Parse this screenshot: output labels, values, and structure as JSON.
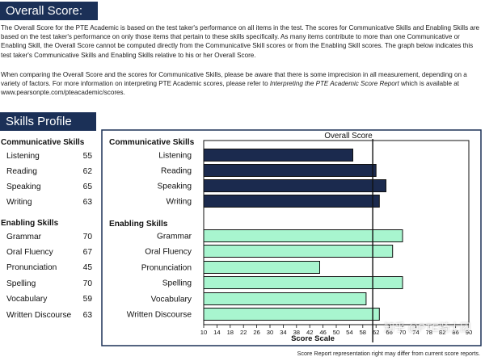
{
  "overall": {
    "header": "Overall Score: 61",
    "score": 61,
    "paragraph1": "The Overall Score for the PTE Academic is based on the test taker's performance on all items in the test.  The scores for Communicative Skills and Enabling Skills are based on the test taker's performance on only those items that pertain to these skills specifically.  As many items contribute to more than one Communicative or Enabling Skill, the Overall Score cannot be computed directly from the Communicative Skill scores or from the Enabling Skill scores.  The graph below indicates this test taker's Communicative Skills and Enabling Skills relative to his or her Overall Score.",
    "paragraph2_pre": "When comparing the Overall Score and the scores for Communicative Skills, please be aware that there is some imprecision in all measurement, depending on a variety of factors.  For more information on interpreting PTE Academic scores, please refer to ",
    "paragraph2_italic": "Interpreting the PTE Academic Score Report",
    "paragraph2_post": " which is available at www.pearsonpte.com/pteacademic/scores."
  },
  "skills_profile": {
    "header": "Skills Profile",
    "communicative_heading": "Communicative Skills",
    "enabling_heading": "Enabling Skills",
    "communicative": [
      {
        "name": "Listening",
        "score": "55"
      },
      {
        "name": "Reading",
        "score": "62"
      },
      {
        "name": "Speaking",
        "score": "65"
      },
      {
        "name": "Writing",
        "score": "63"
      }
    ],
    "enabling": [
      {
        "name": "Grammar",
        "score": "70"
      },
      {
        "name": "Oral Fluency",
        "score": "67"
      },
      {
        "name": "Pronunciation",
        "score": "45"
      },
      {
        "name": "Spelling",
        "score": "70"
      },
      {
        "name": "Vocabulary",
        "score": "59"
      },
      {
        "name": "Written Discourse",
        "score": "63"
      }
    ]
  },
  "chart_data": {
    "type": "bar",
    "orientation": "horizontal",
    "groups": [
      {
        "heading": "Communicative Skills",
        "categories": [
          "Listening",
          "Reading",
          "Speaking",
          "Writing"
        ],
        "values": [
          55,
          62,
          65,
          63
        ],
        "color": "#1b2a4e"
      },
      {
        "heading": "Enabling Skills",
        "categories": [
          "Grammar",
          "Oral Fluency",
          "Pronunciation",
          "Spelling",
          "Vocabulary",
          "Written Discourse"
        ],
        "values": [
          70,
          67,
          45,
          70,
          59,
          63
        ],
        "color": "#a8f5cf"
      }
    ],
    "reference_line": {
      "label": "Overall Score",
      "value": 61
    },
    "xlabel": "Score Scale",
    "xlim": [
      10,
      90
    ],
    "xticks": [
      "10",
      "14",
      "18",
      "22",
      "26",
      "30",
      "34",
      "38",
      "42",
      "46",
      "50",
      "54",
      "58",
      "62",
      "66",
      "70",
      "74",
      "78",
      "82",
      "86",
      "90"
    ]
  },
  "footnote": "Score Report representation right may differ from current score reports.",
  "watermark": "知乎 @PTE骑士团"
}
